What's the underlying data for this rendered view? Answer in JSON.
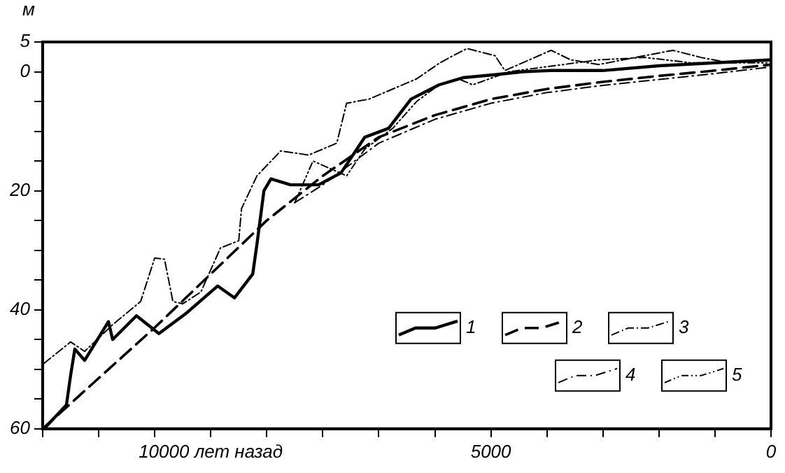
{
  "chart_data": {
    "type": "line",
    "ylabel": "м",
    "xlim": [
      13000,
      0
    ],
    "xticks": [
      {
        "value": 13000,
        "label": null
      },
      {
        "value": 12000,
        "label": null
      },
      {
        "value": 11000,
        "label": null
      },
      {
        "value": 10000,
        "label": "10000 лет назад"
      },
      {
        "value": 9000,
        "label": null
      },
      {
        "value": 8000,
        "label": null
      },
      {
        "value": 7000,
        "label": null
      },
      {
        "value": 6000,
        "label": null
      },
      5000,
      {
        "value": 4000,
        "label": null
      },
      {
        "value": 3000,
        "label": null
      },
      {
        "value": 2000,
        "label": null
      },
      {
        "value": 1000,
        "label": null
      },
      0
    ],
    "ylim": [
      60,
      -5
    ],
    "yticks": [
      {
        "value": -5,
        "label": "5"
      },
      0,
      {
        "value": 5,
        "label": null
      },
      {
        "value": 10,
        "label": null
      },
      {
        "value": 15,
        "label": null
      },
      20,
      {
        "value": 25,
        "label": null
      },
      {
        "value": 30,
        "label": null
      },
      {
        "value": 35,
        "label": null
      },
      40,
      {
        "value": 45,
        "label": null
      },
      {
        "value": 50,
        "label": null
      },
      {
        "value": 55,
        "label": null
      },
      60
    ],
    "grid": false,
    "legend": "bottom right",
    "marker": "none",
    "series": [
      {
        "name": "1",
        "color": "#000000",
        "line_style": "solid",
        "x": [
          12975,
          12575,
          12500,
          12425,
          12250,
          11825,
          11750,
          11325,
          10925,
          10425,
          9875,
          9575,
          9250,
          9175,
          9050,
          8925,
          8575,
          8075,
          7675,
          7250,
          6825,
          6425,
          5925,
          5500,
          4925,
          4425,
          3925,
          3000,
          2000,
          1000,
          0
        ],
        "values": [
          60,
          56,
          51,
          46.6,
          48.5,
          42,
          45,
          41,
          44,
          40.5,
          36,
          38,
          34,
          29,
          20,
          18,
          19,
          19,
          17,
          11,
          9.5,
          4.6,
          2.2,
          1,
          0.5,
          0,
          -0.2,
          -0.2,
          -1,
          -1.5,
          -2
        ]
      },
      {
        "name": "2",
        "color": "#000000",
        "line_style": "dashed",
        "x": [
          13000,
          12000,
          11000,
          10000,
          9000,
          8000,
          7000,
          6000,
          5000,
          4000,
          3000,
          2000,
          1000,
          0
        ],
        "values": [
          60,
          51.5,
          43,
          34,
          25,
          17.5,
          11,
          7.3,
          4.6,
          2.9,
          1.7,
          0.7,
          -0.2,
          -1.2
        ]
      },
      {
        "name": "3",
        "color": "#000000",
        "line_style": "dashed",
        "x": [
          12975,
          12500,
          12250,
          11750,
          11250,
          11000,
          10825,
          10675,
          10500,
          10175,
          9825,
          9500,
          9450,
          9175,
          8750,
          8250,
          7750,
          7575,
          7175,
          6325,
          5925,
          5675,
          5425,
          4925,
          4750,
          3925,
          3575,
          3075,
          2425,
          1750,
          1250,
          750,
          75
        ],
        "values": [
          49,
          45.4,
          47,
          42.5,
          38.6,
          31.3,
          31.5,
          38.6,
          39,
          37,
          29.6,
          28.4,
          23,
          17.5,
          13.3,
          14,
          12,
          5.3,
          4.6,
          1.2,
          -1.4,
          -2.7,
          -3.9,
          -2.7,
          -0.2,
          -3.6,
          -2,
          -1.2,
          -2.4,
          -3.6,
          -2.4,
          -1.5,
          -2
        ]
      },
      {
        "name": "4",
        "color": "#000000",
        "line_style": "dashed",
        "x": [
          8500,
          8000,
          7000,
          6000,
          5000,
          4000,
          3000,
          2000,
          1000,
          0
        ],
        "values": [
          22,
          19,
          12,
          8,
          5.3,
          3.5,
          2.3,
          1.3,
          0.3,
          -0.8
        ]
      },
      {
        "name": "5",
        "color": "#000000",
        "line_style": "dashed",
        "x": [
          8500,
          8175,
          7575,
          7250,
          6750,
          6325,
          5925,
          5575,
          5325,
          4675,
          3075,
          2250,
          1425,
          75
        ],
        "values": [
          22,
          15,
          17.5,
          13,
          9.5,
          5,
          2.2,
          1.2,
          2.2,
          0,
          -2,
          -2.4,
          -1.5,
          -1.5
        ]
      }
    ]
  }
}
